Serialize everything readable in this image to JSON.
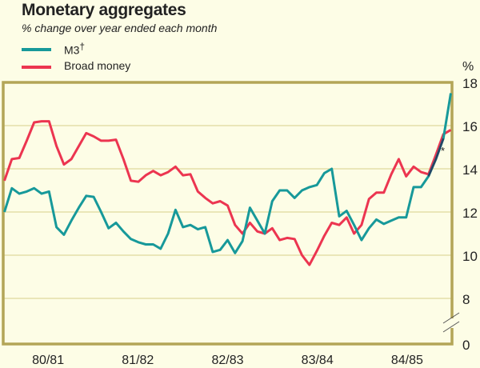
{
  "chart_data": {
    "type": "line",
    "title": "Monetary aggregates",
    "subtitle": "% change over year ended each month",
    "ylabel": "%",
    "frequency": "monthly",
    "x_tick_labels": [
      "80/81",
      "81/82",
      "82/83",
      "83/84",
      "84/85"
    ],
    "y_ticks": [
      0,
      8,
      10,
      12,
      14,
      16,
      18
    ],
    "ylim": [
      0,
      18
    ],
    "y_axis_break": [
      0,
      8
    ],
    "grid": true,
    "legend": "top-left",
    "annotation": "*",
    "series": [
      {
        "name": "M3",
        "name_marker": "†",
        "color": "#17999a",
        "values": [
          12.0,
          13.1,
          12.85,
          12.95,
          13.1,
          12.85,
          12.95,
          11.3,
          10.95,
          11.6,
          12.2,
          12.75,
          12.7,
          12.0,
          11.25,
          11.5,
          11.1,
          10.75,
          10.6,
          10.5,
          10.5,
          10.3,
          11.0,
          12.1,
          11.3,
          11.4,
          11.2,
          11.3,
          10.15,
          10.25,
          10.7,
          10.1,
          10.65,
          12.2,
          11.6,
          11.0,
          12.5,
          13.0,
          13.0,
          12.65,
          13.0,
          13.15,
          13.25,
          13.8,
          14.0,
          11.8,
          12.05,
          11.4,
          10.7,
          11.25,
          11.65,
          11.45,
          11.6,
          11.75,
          11.75,
          13.15,
          13.15,
          13.65,
          14.45,
          15.4,
          17.5
        ]
      },
      {
        "name": "Broad money",
        "color": "#ec3550",
        "values": [
          13.45,
          14.45,
          14.5,
          15.3,
          16.15,
          16.2,
          16.2,
          15.05,
          14.2,
          14.45,
          15.05,
          15.65,
          15.5,
          15.3,
          15.3,
          15.35,
          14.45,
          13.45,
          13.4,
          13.7,
          13.9,
          13.7,
          13.85,
          14.1,
          13.7,
          13.75,
          12.95,
          12.65,
          12.4,
          12.5,
          12.3,
          11.4,
          11.0,
          11.5,
          11.1,
          11.0,
          11.25,
          10.7,
          10.8,
          10.75,
          10.0,
          9.55,
          10.2,
          10.9,
          11.5,
          11.4,
          11.75,
          11.0,
          11.4,
          12.6,
          12.9,
          12.9,
          13.75,
          14.45,
          13.65,
          14.1,
          13.85,
          13.75,
          14.65,
          15.6,
          15.8
        ]
      }
    ]
  },
  "colors": {
    "background": "#fdfde6",
    "frame": "#b3a557",
    "grid": "#d8d08a"
  }
}
